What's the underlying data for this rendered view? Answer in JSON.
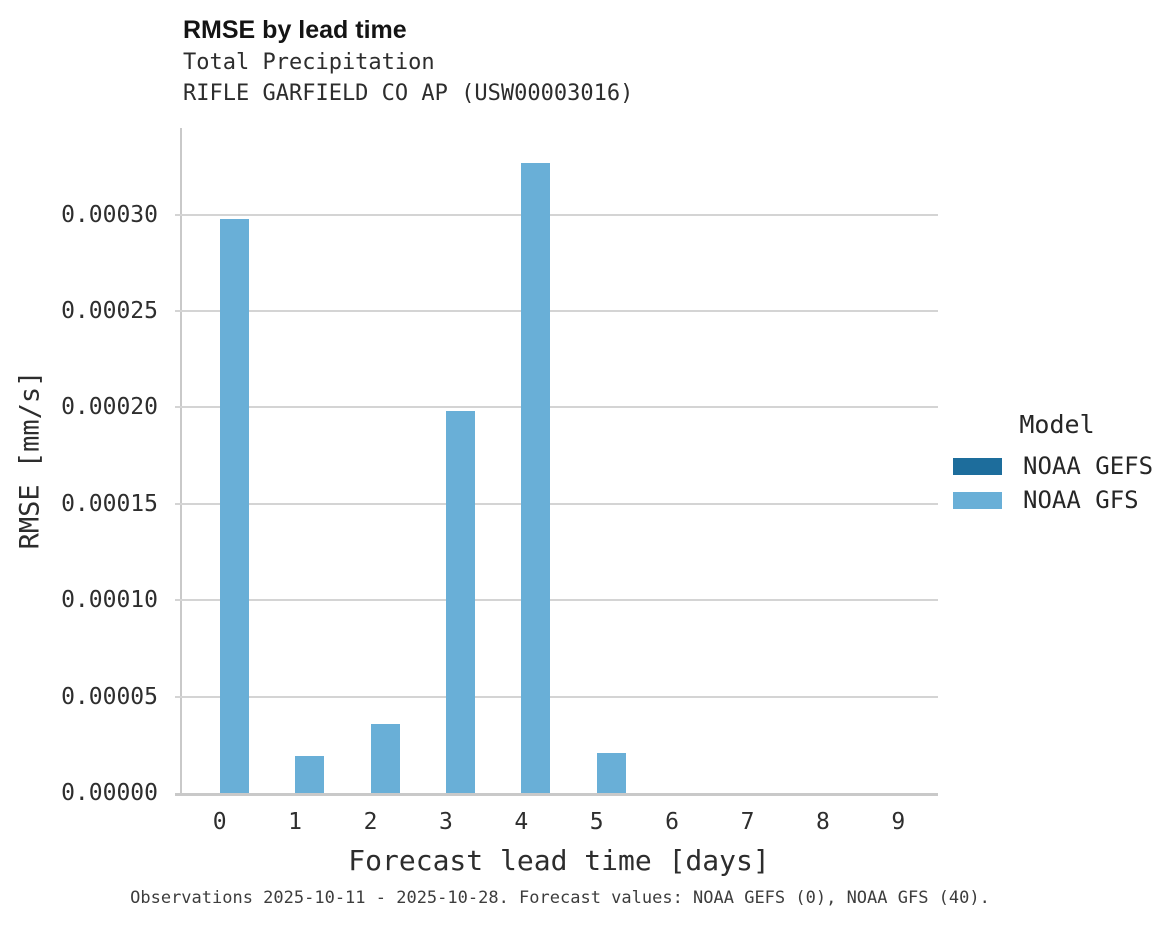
{
  "header": {
    "title": "RMSE by lead time",
    "subtitle_line1": "Total Precipitation",
    "subtitle_line2": "RIFLE GARFIELD CO AP (USW00003016)"
  },
  "caption": "Observations 2025-10-11 - 2025-10-28. Forecast values: NOAA GEFS (0), NOAA GFS (40).",
  "legend": {
    "title": "Model",
    "entries": [
      {
        "label": "NOAA GEFS",
        "color": "#1d6d9c"
      },
      {
        "label": "NOAA GFS",
        "color": "#69afd7"
      }
    ]
  },
  "colors": {
    "noaa_gefs": "#1d6d9c",
    "noaa_gfs": "#69afd7",
    "gridline": "#d4d4d4",
    "axis": "#c9c9c9"
  },
  "chart_data": {
    "type": "bar",
    "title": "RMSE by lead time",
    "subtitle": [
      "Total Precipitation",
      "RIFLE GARFIELD CO AP (USW00003016)"
    ],
    "xlabel": "Forecast lead time [days]",
    "ylabel": "RMSE [mm/s]",
    "categories": [
      "0",
      "1",
      "2",
      "3",
      "4",
      "5",
      "6",
      "7",
      "8",
      "9"
    ],
    "series": [
      {
        "name": "NOAA GEFS",
        "color": "#1d6d9c",
        "values": [
          0,
          0,
          0,
          0,
          0,
          0,
          0,
          0,
          0,
          0
        ]
      },
      {
        "name": "NOAA GFS",
        "color": "#69afd7",
        "values": [
          0.000298,
          1.9e-05,
          3.6e-05,
          0.000198,
          0.000327,
          2.1e-05,
          0,
          0,
          0,
          0
        ]
      }
    ],
    "ylim": [
      0,
      0.000345
    ],
    "yticks": [
      0,
      5e-05,
      0.0001,
      0.00015,
      0.0002,
      0.00025,
      0.0003
    ],
    "ytick_labels": [
      "0.00000",
      "0.00005",
      "0.00010",
      "0.00015",
      "0.00020",
      "0.00025",
      "0.00030"
    ],
    "grid": "horizontal",
    "legend_title": "Model",
    "legend_position": "center-right"
  }
}
